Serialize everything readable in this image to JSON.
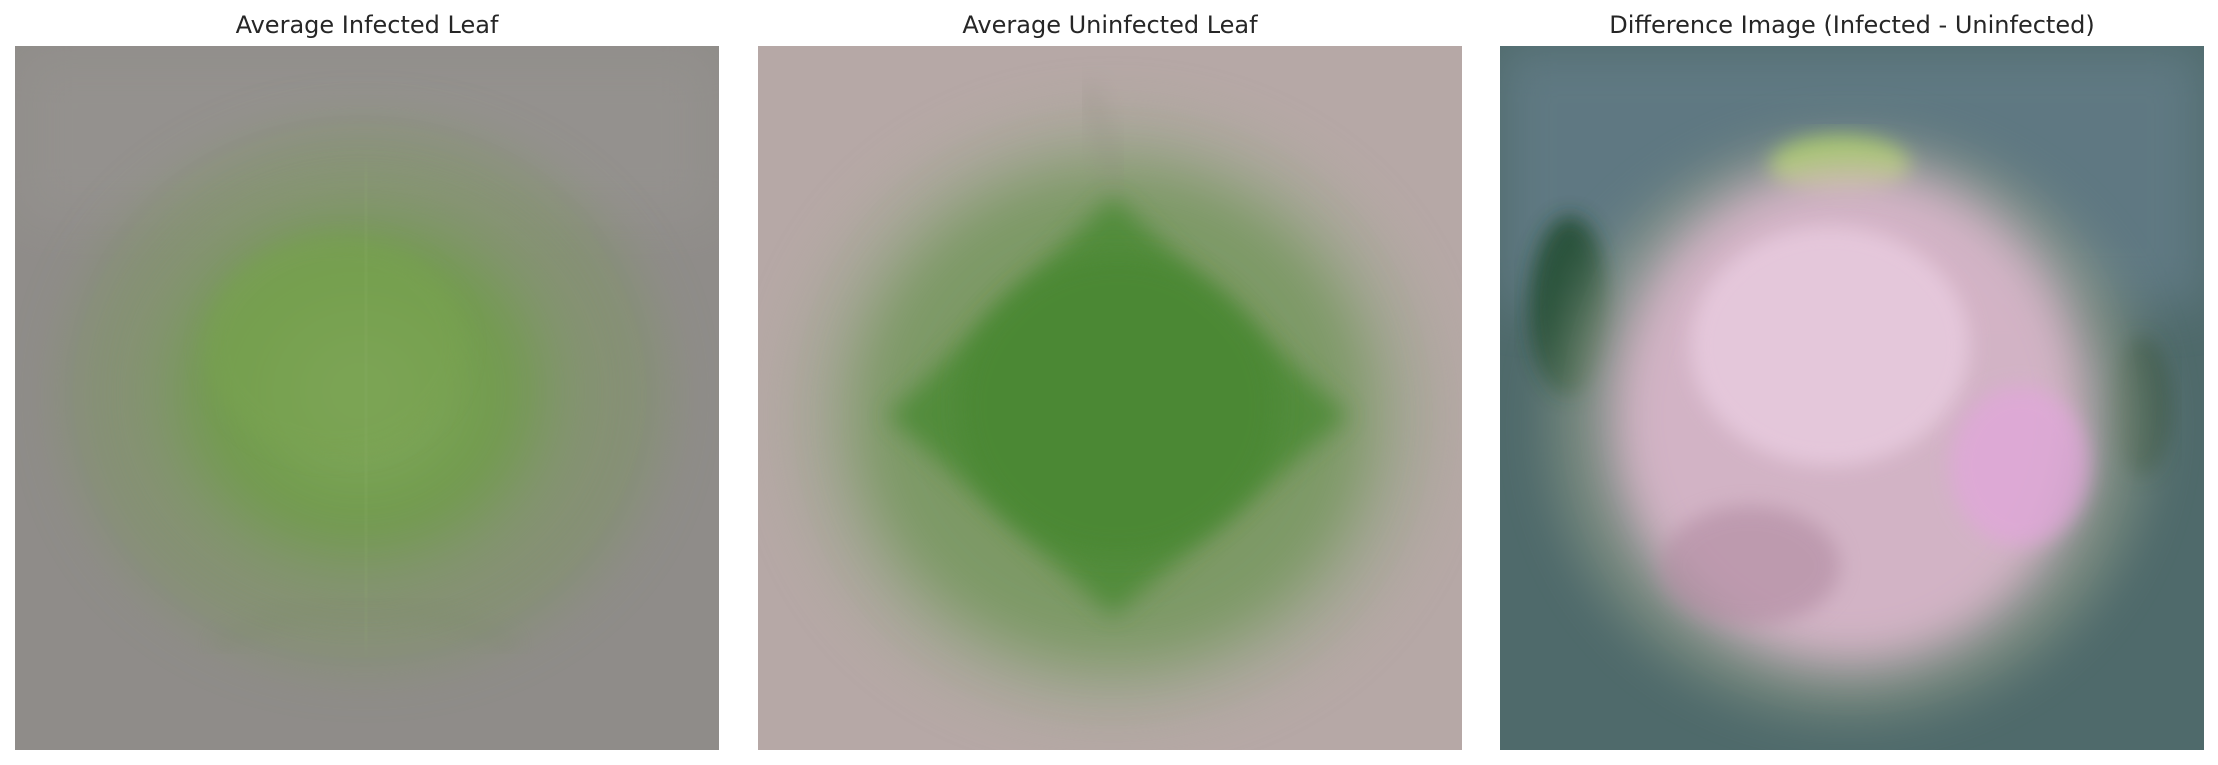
{
  "panels": [
    {
      "title": "Average Infected Leaf",
      "background_color": "#8f8c89",
      "leaf_color": "#6f9a4a",
      "highlight_color": "#86ac62"
    },
    {
      "title": "Average Uninfected Leaf",
      "background_color": "#b6a8a6",
      "leaf_color": "#4c8a35",
      "highlight_color": "#6c9c56"
    },
    {
      "title": "Difference Image (Infected - Uninfected)",
      "background_color": "#4f6a6b",
      "leaf_color": "#d8b6c9",
      "highlight_color": "#e9cce0"
    }
  ]
}
